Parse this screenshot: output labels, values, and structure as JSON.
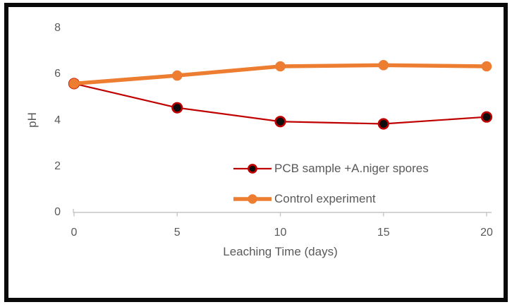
{
  "figure": {
    "border_color": "#0a0a0a",
    "background_color": "#ffffff"
  },
  "chart_data": {
    "type": "line",
    "title": "",
    "xlabel": "Leaching Time (days)",
    "ylabel": "pH",
    "x": [
      0,
      5,
      10,
      15,
      20
    ],
    "xticks": [
      "0",
      "5",
      "10",
      "15",
      "20"
    ],
    "yticks": [
      "0",
      "2",
      "4",
      "6",
      "8"
    ],
    "xlim": [
      0,
      20
    ],
    "ylim": [
      0,
      8
    ],
    "grid": false,
    "legend_position": "inside-lower-right",
    "axis_color": "#c6c6c6",
    "text_color": "#595959",
    "series": [
      {
        "name": "PCB sample +A.niger spores",
        "values": [
          5.6,
          4.55,
          3.95,
          3.85,
          4.15
        ],
        "line_color": "#c00000",
        "line_width": 2.2,
        "marker_fill": "#0d0d0d",
        "marker_stroke": "#c00000",
        "marker_stroke_width": 2.6,
        "marker_radius": 6.8
      },
      {
        "name": "Control experiment",
        "values": [
          5.6,
          5.95,
          6.35,
          6.4,
          6.35
        ],
        "line_color": "#ed7d31",
        "line_width": 5.5,
        "marker_fill": "#ed7d31",
        "marker_stroke": "#ed7d31",
        "marker_stroke_width": 1,
        "marker_radius": 6.8
      }
    ]
  }
}
